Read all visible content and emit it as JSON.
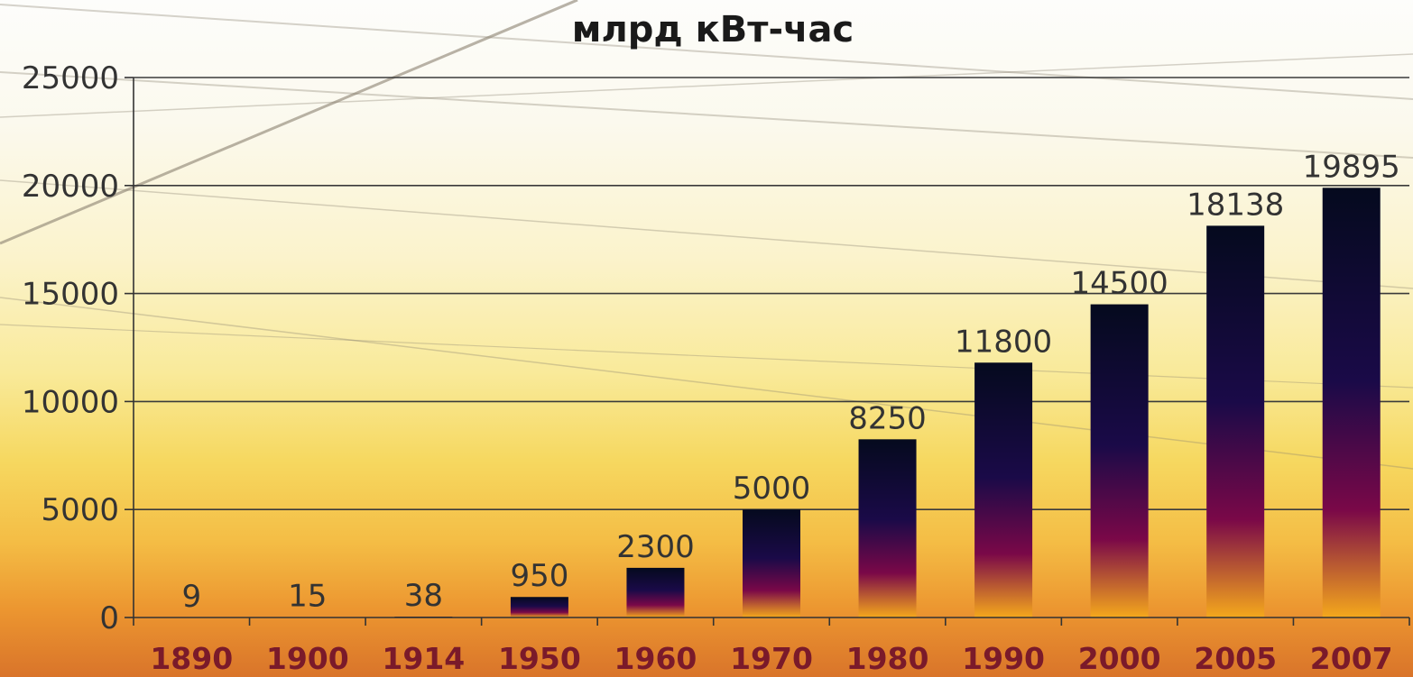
{
  "chart_data": {
    "type": "bar",
    "title": "млрд кВт-час",
    "xlabel": "",
    "ylabel": "",
    "categories": [
      "1890",
      "1900",
      "1914",
      "1950",
      "1960",
      "1970",
      "1980",
      "1990",
      "2000",
      "2005",
      "2007"
    ],
    "values": [
      9,
      15,
      38,
      950,
      2300,
      5000,
      8250,
      11800,
      14500,
      18138,
      19895
    ],
    "data_labels": [
      "9",
      "15",
      "38",
      "950",
      "2300",
      "5000",
      "8250",
      "11800",
      "14500",
      "18138",
      "19895"
    ],
    "ylim": [
      0,
      25000
    ],
    "yticks": [
      0,
      5000,
      10000,
      15000,
      20000,
      25000
    ],
    "ytick_labels": [
      "0",
      "5000",
      "10000",
      "15000",
      "20000",
      "25000"
    ],
    "grid": true,
    "legend": "none",
    "colors": {
      "bar_top": "#050a1e",
      "bar_mid": "#1a0a48",
      "bar_magenta": "#7a0848",
      "bar_bottom": "#f5a81c",
      "gridline": "#3a3a3a",
      "axis": "#333333",
      "tick_label": "#7a1a2a"
    }
  }
}
